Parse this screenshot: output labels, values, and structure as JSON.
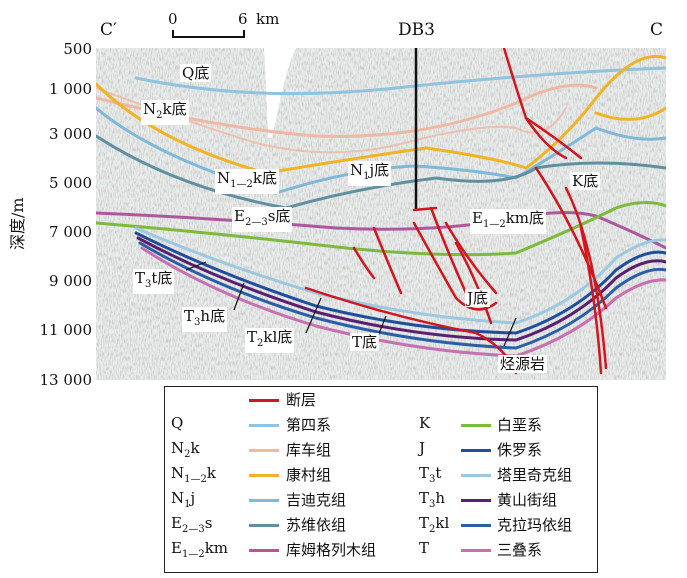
{
  "header": {
    "left_end": "C′",
    "right_end": "C",
    "well": "DB3"
  },
  "scale_bar": {
    "start": "0",
    "end": "6",
    "unit": "km"
  },
  "y_axis": {
    "label": "深度/m",
    "ticks": [
      "500",
      "1 000",
      "3 000",
      "5 000",
      "7 000",
      "9 000",
      "11 000",
      "13 000"
    ]
  },
  "horizon_labels": {
    "q": {
      "code": "Q",
      "suffix": "底"
    },
    "n2k": {
      "code": "N",
      "sub": "2",
      "code2": "k",
      "suffix": "底"
    },
    "n12k": {
      "code": "N",
      "sub": "1—2",
      "code2": "k",
      "suffix": "底"
    },
    "n1j": {
      "code": "N",
      "sub": "1",
      "code2": "j",
      "suffix": "底"
    },
    "e23s": {
      "code": "E",
      "sub": "2—3",
      "code2": "s",
      "suffix": "底"
    },
    "e12km": {
      "code": "E",
      "sub": "1—2",
      "code2": "km",
      "suffix": "底"
    },
    "k": {
      "code": "K",
      "suffix": "底"
    },
    "t3t": {
      "code": "T",
      "sub": "3",
      "code2": "t",
      "suffix": "底"
    },
    "t3h": {
      "code": "T",
      "sub": "3",
      "code2": "h",
      "suffix": "底"
    },
    "t2kl": {
      "code": "T",
      "sub": "2",
      "code2": "kl",
      "suffix": "底"
    },
    "t": {
      "code": "T",
      "suffix": "底"
    },
    "j": {
      "code": "J",
      "suffix": "底"
    },
    "source": {
      "text": "烃源岩"
    }
  },
  "legend": {
    "fault": {
      "name": "断层",
      "color": "#d0161e"
    },
    "left": [
      {
        "code": "Q",
        "sub": "",
        "code2": "",
        "name": "第四系",
        "color": "#8fc3df"
      },
      {
        "code": "N",
        "sub": "2",
        "code2": "k",
        "name": "库车组",
        "color": "#f0b8a2"
      },
      {
        "code": "N",
        "sub": "1—2",
        "code2": "k",
        "name": "康村组",
        "color": "#f2b323"
      },
      {
        "code": "N",
        "sub": "1",
        "code2": "j",
        "name": "吉迪克组",
        "color": "#7fb8d8"
      },
      {
        "code": "E",
        "sub": "2—3",
        "code2": "s",
        "name": "苏维依组",
        "color": "#5f8fa0"
      },
      {
        "code": "E",
        "sub": "1—2",
        "code2": "km",
        "name": "库姆格列木组",
        "color": "#b0569e"
      }
    ],
    "right": [
      {
        "code": "K",
        "sub": "",
        "code2": "",
        "name": "白垩系",
        "color": "#7cba3a"
      },
      {
        "code": "J",
        "sub": "",
        "code2": "",
        "name": "侏罗系",
        "color": "#1f4f9c"
      },
      {
        "code": "T",
        "sub": "3",
        "code2": "t",
        "name": "塔里奇克组",
        "color": "#9cc9e0"
      },
      {
        "code": "T",
        "sub": "3",
        "code2": "h",
        "name": "黄山街组",
        "color": "#5a1f6e"
      },
      {
        "code": "T",
        "sub": "2",
        "code2": "kl",
        "name": "克拉玛依组",
        "color": "#2a5fa8"
      },
      {
        "code": "T",
        "sub": "",
        "code2": "",
        "name": "三叠系",
        "color": "#c86fb0"
      }
    ]
  }
}
